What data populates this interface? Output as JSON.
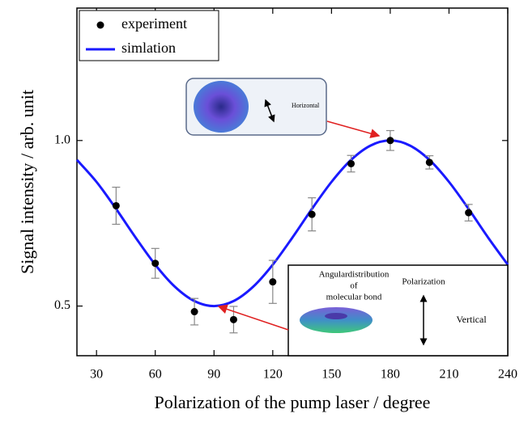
{
  "chart_data": {
    "type": "scatter",
    "xlabel": "Polarization of the pump laser / degree",
    "ylabel": "Signal intensity / arb. unit",
    "xlim": [
      20,
      240
    ],
    "ylim": [
      0.35,
      1.4
    ],
    "xticks": [
      30,
      60,
      90,
      120,
      150,
      180,
      210,
      240
    ],
    "yticks": [
      0.5,
      {
        "value": 1.0,
        "label": "1.0"
      }
    ],
    "legend": "upper left",
    "series": [
      {
        "name": "experiment",
        "type": "scatter",
        "color": "#000000",
        "x": [
          40,
          60,
          80,
          100,
          120,
          140,
          160,
          180,
          200,
          220
        ],
        "values": [
          0.803,
          0.629,
          0.483,
          0.459,
          0.573,
          0.777,
          0.93,
          1.0,
          0.934,
          0.782
        ],
        "errors": [
          0.056,
          0.045,
          0.04,
          0.04,
          0.065,
          0.05,
          0.025,
          0.03,
          0.02,
          0.025
        ]
      },
      {
        "name": "simlation",
        "type": "line",
        "color": "#1a1aff",
        "x": [
          20,
          30,
          40,
          50,
          60,
          70,
          80,
          90,
          100,
          110,
          120,
          130,
          140,
          150,
          160,
          170,
          180,
          190,
          200,
          210,
          220,
          230,
          240
        ],
        "values": [
          0.9415,
          0.875,
          0.7934,
          0.7066,
          0.625,
          0.5585,
          0.5151,
          0.5,
          0.5151,
          0.5585,
          0.625,
          0.7066,
          0.7934,
          0.875,
          0.9415,
          0.9849,
          1.0,
          0.9849,
          0.9415,
          0.875,
          0.7934,
          0.7066,
          0.625
        ]
      }
    ],
    "annotations": [
      "Horizontal",
      "Angulardistribution",
      "of",
      "molecular bond",
      "Polarization",
      "Vertical"
    ]
  }
}
